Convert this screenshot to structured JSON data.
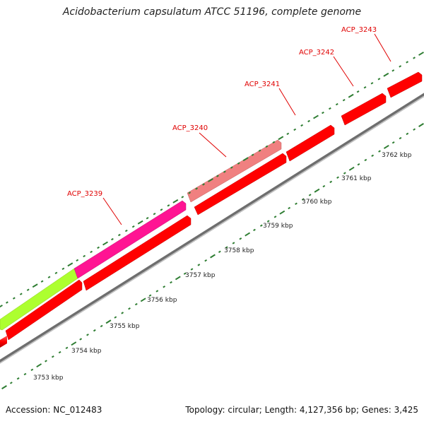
{
  "title": "Acidobacterium capsulatum ATCC 51196, complete genome",
  "footer": {
    "accession": "Accession: NC_012483",
    "summary": "Topology: circular; Length: 4,127,356 bp; Genes: 3,425"
  },
  "gene_labels": [
    "ACP_3239",
    "ACP_3240",
    "ACP_3241",
    "ACP_3242",
    "ACP_3243"
  ],
  "kbp_labels": [
    "3753 kbp",
    "3754 kbp",
    "3755 kbp",
    "3756 kbp",
    "3757 kbp",
    "3758 kbp",
    "3759 kbp",
    "3760 kbp",
    "3761 kbp",
    "3762 kbp"
  ],
  "colors": {
    "backbone": "#7a7a7a",
    "gene_red": "#ff0000",
    "gene_magenta": "#ff1493",
    "gene_pink": "#f08080",
    "gene_lime": "#adff2f",
    "tick": "#2e7d32",
    "label_red": "#e00000"
  }
}
